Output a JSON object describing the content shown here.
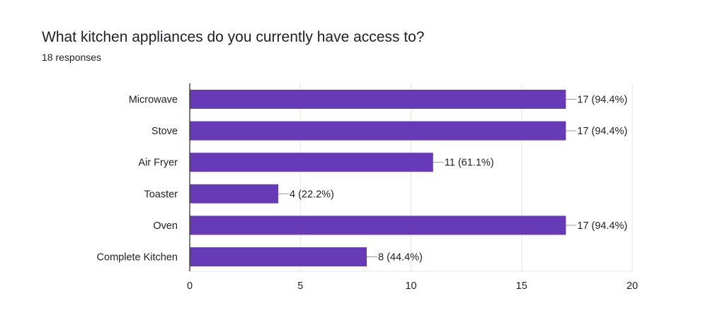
{
  "chart_data": {
    "type": "bar",
    "orientation": "horizontal",
    "title": "What kitchen appliances do you currently have access to?",
    "subtitle": "18 responses",
    "categories": [
      "Microwave",
      "Stove",
      "Air Fryer",
      "Toaster",
      "Oven",
      "Complete Kitchen"
    ],
    "values": [
      17,
      17,
      11,
      4,
      17,
      8
    ],
    "value_labels": [
      "17 (94.4%)",
      "17 (94.4%)",
      "11 (61.1%)",
      "4 (22.2%)",
      "17 (94.4%)",
      "8 (44.4%)"
    ],
    "xlim": [
      0,
      20
    ],
    "xticks": [
      0,
      5,
      10,
      15,
      20
    ],
    "xlabel": "",
    "ylabel": "",
    "grid": true,
    "legend": "none",
    "colors": {
      "bar": "#673ab7",
      "grid": "#e6e6e6",
      "axis": "#333333",
      "leader": "#999999"
    }
  }
}
